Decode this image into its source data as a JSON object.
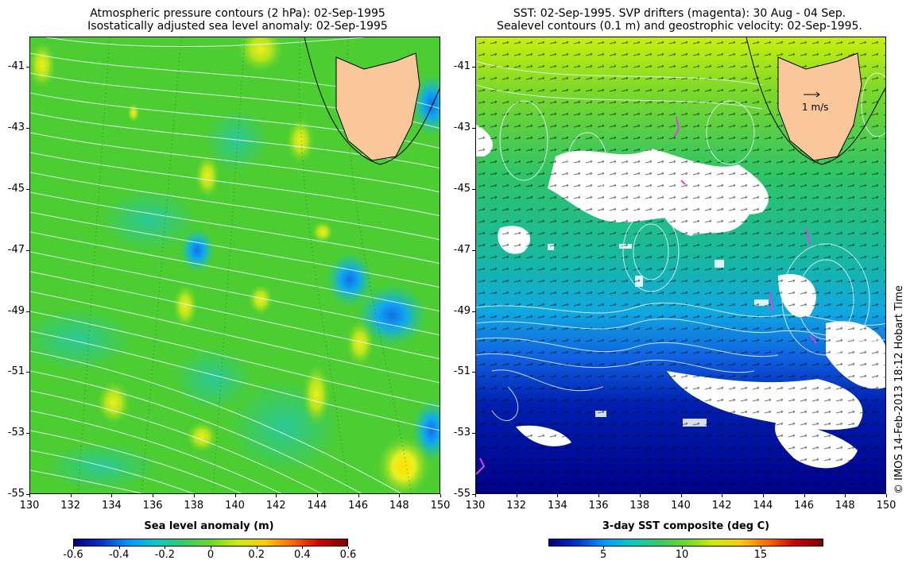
{
  "left_panel": {
    "title_line1": "Atmospheric pressure contours (2 hPa): 02-Sep-1995",
    "title_line2": "Isostatically adjusted sea level anomaly: 02-Sep-1995",
    "colorbar_title": "Sea level anomaly (m)",
    "colorbar_labels": [
      "-0.6",
      "-0.4",
      "-0.2",
      "0",
      "0.2",
      "0.4",
      "0.6"
    ],
    "colorbar_values": [
      -0.6,
      -0.4,
      -0.2,
      0,
      0.2,
      0.4,
      0.6
    ],
    "colorbar_range": [
      -0.6,
      0.6
    ]
  },
  "right_panel": {
    "title_line1": "SST: 02-Sep-1995. SVP drifters (magenta): 30 Aug - 04 Sep.",
    "title_line2": "Sealevel contours (0.1 m) and geostrophic velocity: 02-Sep-1995.",
    "colorbar_title": "3-day SST composite (deg C)",
    "colorbar_labels": [
      "5",
      "10",
      "15"
    ],
    "colorbar_values": [
      5,
      10,
      15
    ],
    "colorbar_range": [
      1.5,
      19
    ],
    "velocity_scale_label": "1 m/s"
  },
  "axes": {
    "x_labels": [
      "130",
      "132",
      "134",
      "136",
      "138",
      "140",
      "142",
      "144",
      "146",
      "148",
      "150"
    ],
    "x_values": [
      130,
      132,
      134,
      136,
      138,
      140,
      142,
      144,
      146,
      148,
      150
    ],
    "y_labels": [
      "-41",
      "-43",
      "-45",
      "-47",
      "-49",
      "-51",
      "-53",
      "-55"
    ],
    "y_values": [
      -41,
      -43,
      -45,
      -47,
      -49,
      -51,
      -53,
      -55
    ],
    "lon_range": [
      130,
      150
    ],
    "lat_range": [
      -40,
      -55
    ]
  },
  "credit": "© IMOS 14-Feb-2013 18:12 Hobart Time",
  "colors": {
    "land": "#f9c79a",
    "contour": "#e8f4ff",
    "sla_cmap": [
      "#00007f",
      "#0033cc",
      "#0099ff",
      "#00cccc",
      "#33cc66",
      "#66dd22",
      "#ccee00",
      "#ffcc00",
      "#ff6600",
      "#cc0000",
      "#7f0000"
    ],
    "sst_cmap": [
      "#00007f",
      "#0033cc",
      "#0099ff",
      "#00cccc",
      "#33cc66",
      "#66dd22",
      "#ccee00",
      "#ffcc00",
      "#ff6600",
      "#cc0000",
      "#7f0000"
    ]
  }
}
